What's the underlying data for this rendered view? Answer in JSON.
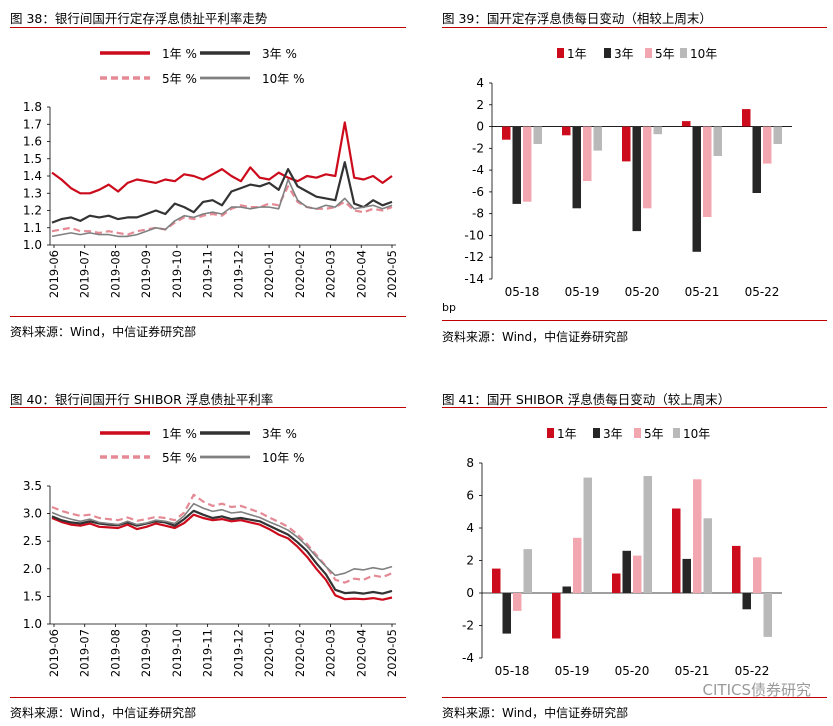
{
  "panels": {
    "p38": {
      "title": "图 38：银行间国开行定存浮息债扯平利率走势",
      "source": "资料来源：Wind，中信证券研究部"
    },
    "p39": {
      "title": "图 39：国开定存浮息债每日变动（相较上周末）",
      "source": "资料来源：Wind，中信证券研究部",
      "unit": "bp"
    },
    "p40": {
      "title": "图 40：银行间国开行 SHIBOR 浮息债扯平利率",
      "source": "资料来源：Wind，中信证券研究部"
    },
    "p41": {
      "title": "图 41：国开 SHIBOR 浮息债每日变动（较上周末）",
      "source": "资料来源：Wind，中信证券研究部"
    }
  },
  "watermark": "CITICS债券研究",
  "chart_data": [
    {
      "id": "c38",
      "type": "line",
      "x_ticks": [
        "2019-06",
        "2019-07",
        "2019-08",
        "2019-09",
        "2019-10",
        "2019-11",
        "2019-12",
        "2020-01",
        "2020-02",
        "2020-03",
        "2020-04",
        "2020-05"
      ],
      "ylim": [
        1.0,
        1.8
      ],
      "y_ticks": [
        "1.0",
        "1.1",
        "1.2",
        "1.3",
        "1.4",
        "1.5",
        "1.6",
        "1.7",
        "1.8"
      ],
      "series": [
        {
          "name": "1年 %",
          "color": "#cc0c1c",
          "dash": "",
          "width": 2.2,
          "values": [
            1.42,
            1.38,
            1.33,
            1.3,
            1.3,
            1.32,
            1.35,
            1.31,
            1.36,
            1.38,
            1.37,
            1.36,
            1.38,
            1.37,
            1.41,
            1.4,
            1.38,
            1.41,
            1.44,
            1.4,
            1.37,
            1.45,
            1.39,
            1.38,
            1.42,
            1.39,
            1.37,
            1.4,
            1.39,
            1.41,
            1.4,
            1.71,
            1.39,
            1.38,
            1.4,
            1.36,
            1.4
          ]
        },
        {
          "name": "3年 %",
          "color": "#333333",
          "dash": "",
          "width": 2.2,
          "values": [
            1.13,
            1.15,
            1.16,
            1.14,
            1.17,
            1.16,
            1.17,
            1.15,
            1.16,
            1.16,
            1.18,
            1.2,
            1.18,
            1.24,
            1.22,
            1.19,
            1.25,
            1.26,
            1.23,
            1.31,
            1.33,
            1.35,
            1.34,
            1.36,
            1.32,
            1.44,
            1.34,
            1.31,
            1.28,
            1.27,
            1.26,
            1.48,
            1.24,
            1.22,
            1.26,
            1.23,
            1.25
          ]
        },
        {
          "name": "5年 %",
          "color": "#e58a95",
          "dash": "7,4",
          "width": 2.2,
          "values": [
            1.08,
            1.09,
            1.1,
            1.08,
            1.08,
            1.07,
            1.08,
            1.07,
            1.06,
            1.08,
            1.09,
            1.1,
            1.09,
            1.13,
            1.16,
            1.15,
            1.17,
            1.18,
            1.17,
            1.21,
            1.23,
            1.22,
            1.22,
            1.24,
            1.23,
            1.34,
            1.25,
            1.22,
            1.21,
            1.21,
            1.22,
            1.25,
            1.2,
            1.19,
            1.21,
            1.2,
            1.22
          ]
        },
        {
          "name": "10年 %",
          "color": "#808080",
          "dash": "",
          "width": 1.6,
          "values": [
            1.05,
            1.06,
            1.07,
            1.06,
            1.07,
            1.06,
            1.06,
            1.05,
            1.05,
            1.06,
            1.08,
            1.1,
            1.09,
            1.14,
            1.17,
            1.16,
            1.18,
            1.19,
            1.18,
            1.22,
            1.22,
            1.21,
            1.22,
            1.22,
            1.21,
            1.38,
            1.26,
            1.22,
            1.21,
            1.23,
            1.22,
            1.27,
            1.21,
            1.22,
            1.23,
            1.21,
            1.23
          ]
        }
      ]
    },
    {
      "id": "c39",
      "type": "bar",
      "categories": [
        "05-18",
        "05-19",
        "05-20",
        "05-21",
        "05-22"
      ],
      "ylim": [
        -14,
        4
      ],
      "y_ticks": [
        "4",
        "2",
        "0",
        "-2",
        "-4",
        "-6",
        "-8",
        "-10",
        "-12",
        "-14"
      ],
      "series": [
        {
          "name": "1年",
          "color": "#cc0c1c",
          "values": [
            -1.2,
            -0.8,
            -3.2,
            0.5,
            1.6
          ]
        },
        {
          "name": "3年",
          "color": "#262626",
          "values": [
            -7.1,
            -7.5,
            -9.6,
            -11.5,
            -6.1
          ]
        },
        {
          "name": "5年",
          "color": "#f2a7b0",
          "values": [
            -6.9,
            -5.0,
            -7.5,
            -8.3,
            -3.4
          ]
        },
        {
          "name": "10年",
          "color": "#b9b9b9",
          "values": [
            -1.6,
            -2.2,
            -0.7,
            -2.7,
            -1.6
          ]
        }
      ]
    },
    {
      "id": "c40",
      "type": "line",
      "x_ticks": [
        "2019-06",
        "2019-07",
        "2019-08",
        "2019-09",
        "2019-10",
        "2019-11",
        "2019-12",
        "2020-01",
        "2020-02",
        "2020-03",
        "2020-04",
        "2020-05"
      ],
      "ylim": [
        1.0,
        3.5
      ],
      "y_ticks": [
        "1.0",
        "1.5",
        "2.0",
        "2.5",
        "3.0",
        "3.5"
      ],
      "series": [
        {
          "name": "1年 %",
          "color": "#cc0c1c",
          "dash": "",
          "width": 2.2,
          "values": [
            2.92,
            2.85,
            2.8,
            2.78,
            2.82,
            2.76,
            2.75,
            2.74,
            2.8,
            2.72,
            2.76,
            2.82,
            2.78,
            2.74,
            2.83,
            2.98,
            2.92,
            2.88,
            2.9,
            2.86,
            2.88,
            2.84,
            2.8,
            2.72,
            2.62,
            2.55,
            2.4,
            2.22,
            2.0,
            1.8,
            1.52,
            1.45,
            1.46,
            1.45,
            1.47,
            1.44,
            1.48
          ]
        },
        {
          "name": "3年 %",
          "color": "#333333",
          "dash": "",
          "width": 2.2,
          "values": [
            2.95,
            2.88,
            2.84,
            2.82,
            2.86,
            2.82,
            2.8,
            2.79,
            2.84,
            2.78,
            2.82,
            2.86,
            2.84,
            2.78,
            2.9,
            3.05,
            2.98,
            2.92,
            2.95,
            2.9,
            2.92,
            2.89,
            2.86,
            2.78,
            2.7,
            2.62,
            2.48,
            2.32,
            2.1,
            1.9,
            1.62,
            1.56,
            1.57,
            1.55,
            1.58,
            1.55,
            1.6
          ]
        },
        {
          "name": "5年 %",
          "color": "#e58a95",
          "dash": "7,4",
          "width": 2.2,
          "values": [
            3.12,
            3.05,
            3.0,
            2.96,
            2.98,
            2.92,
            2.9,
            2.88,
            2.93,
            2.87,
            2.9,
            2.94,
            2.92,
            2.88,
            3.02,
            3.34,
            3.22,
            3.14,
            3.18,
            3.12,
            3.14,
            3.08,
            3.02,
            2.93,
            2.85,
            2.76,
            2.62,
            2.45,
            2.25,
            2.05,
            1.8,
            1.75,
            1.82,
            1.8,
            1.88,
            1.85,
            1.92
          ]
        },
        {
          "name": "10年 %",
          "color": "#808080",
          "dash": "",
          "width": 1.6,
          "values": [
            3.02,
            2.95,
            2.9,
            2.86,
            2.9,
            2.84,
            2.82,
            2.8,
            2.86,
            2.8,
            2.83,
            2.88,
            2.86,
            2.82,
            2.96,
            3.18,
            3.1,
            3.04,
            3.07,
            3.01,
            3.03,
            2.98,
            2.93,
            2.85,
            2.78,
            2.7,
            2.57,
            2.41,
            2.22,
            2.04,
            1.88,
            1.92,
            2.0,
            1.98,
            2.02,
            1.99,
            2.04
          ]
        }
      ]
    },
    {
      "id": "c41",
      "type": "bar",
      "categories": [
        "05-18",
        "05-19",
        "05-20",
        "05-21",
        "05-22"
      ],
      "ylim": [
        -4,
        8
      ],
      "y_ticks": [
        "8",
        "6",
        "4",
        "2",
        "0",
        "-2",
        "-4"
      ],
      "series": [
        {
          "name": "1年",
          "color": "#cc0c1c",
          "values": [
            1.5,
            -2.8,
            1.2,
            5.2,
            2.9
          ]
        },
        {
          "name": "3年",
          "color": "#262626",
          "values": [
            -2.5,
            0.4,
            2.6,
            2.1,
            -1.0
          ]
        },
        {
          "name": "5年",
          "color": "#f2a7b0",
          "values": [
            -1.1,
            3.4,
            2.3,
            7.0,
            2.2
          ]
        },
        {
          "name": "10年",
          "color": "#b9b9b9",
          "values": [
            2.7,
            7.1,
            7.2,
            4.6,
            -2.7
          ]
        }
      ]
    }
  ]
}
